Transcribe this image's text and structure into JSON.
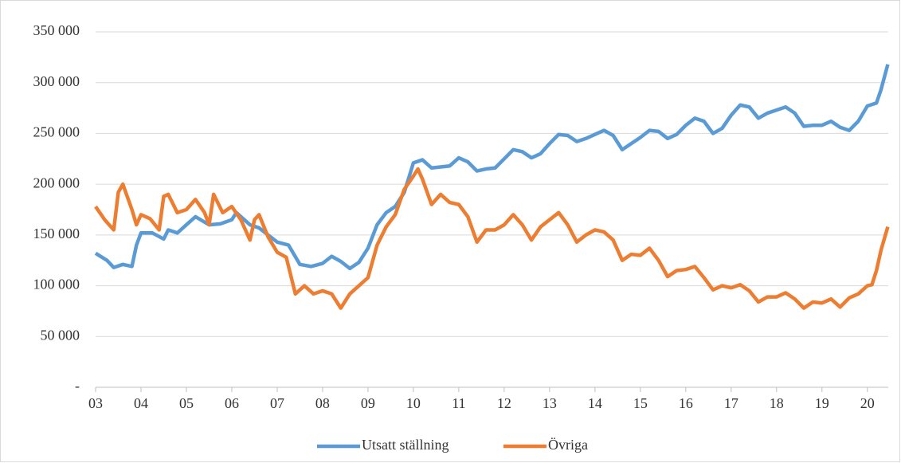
{
  "chart_data": {
    "type": "line",
    "xlim": [
      3,
      20.46
    ],
    "xticks": [
      {
        "value": 3,
        "label": "03"
      },
      {
        "value": 4,
        "label": "04"
      },
      {
        "value": 5,
        "label": "05"
      },
      {
        "value": 6,
        "label": "06"
      },
      {
        "value": 7,
        "label": "07"
      },
      {
        "value": 8,
        "label": "08"
      },
      {
        "value": 9,
        "label": "09"
      },
      {
        "value": 10,
        "label": "10"
      },
      {
        "value": 11,
        "label": "11"
      },
      {
        "value": 12,
        "label": "12"
      },
      {
        "value": 13,
        "label": "13"
      },
      {
        "value": 14,
        "label": "14"
      },
      {
        "value": 15,
        "label": "15"
      },
      {
        "value": 16,
        "label": "16"
      },
      {
        "value": 17,
        "label": "17"
      },
      {
        "value": 18,
        "label": "18"
      },
      {
        "value": 19,
        "label": "19"
      },
      {
        "value": 20,
        "label": "20"
      }
    ],
    "ylim": [
      0,
      350000
    ],
    "yticks": [
      {
        "value": 0,
        "label": "-"
      },
      {
        "value": 50000,
        "label": "50 000"
      },
      {
        "value": 100000,
        "label": "100 000"
      },
      {
        "value": 150000,
        "label": "150 000"
      },
      {
        "value": 200000,
        "label": "200 000"
      },
      {
        "value": 250000,
        "label": "250 000"
      },
      {
        "value": 300000,
        "label": "300 000"
      },
      {
        "value": 350000,
        "label": "350 000"
      }
    ],
    "grid": true,
    "legend": "bottom",
    "series": [
      {
        "name": "Utsatt ställning",
        "color": "#5b9bd5",
        "x": [
          3.0,
          3.25,
          3.4,
          3.6,
          3.8,
          3.9,
          4.0,
          4.25,
          4.5,
          4.6,
          4.8,
          5.0,
          5.2,
          5.5,
          5.75,
          6.0,
          6.1,
          6.4,
          6.6,
          6.8,
          7.0,
          7.25,
          7.5,
          7.75,
          8.0,
          8.2,
          8.4,
          8.6,
          8.8,
          9.0,
          9.2,
          9.4,
          9.6,
          9.8,
          10.0,
          10.2,
          10.4,
          10.6,
          10.8,
          11.0,
          11.2,
          11.4,
          11.6,
          11.8,
          12.0,
          12.2,
          12.4,
          12.6,
          12.8,
          13.0,
          13.2,
          13.4,
          13.6,
          13.8,
          14.0,
          14.2,
          14.4,
          14.6,
          14.8,
          15.0,
          15.2,
          15.4,
          15.6,
          15.8,
          16.0,
          16.2,
          16.4,
          16.6,
          16.8,
          17.0,
          17.2,
          17.4,
          17.6,
          17.8,
          18.0,
          18.2,
          18.4,
          18.6,
          18.8,
          19.0,
          19.2,
          19.4,
          19.6,
          19.8,
          20.0,
          20.2,
          20.3,
          20.45
        ],
        "values": [
          132000,
          125000,
          118000,
          121000,
          119000,
          140000,
          152000,
          152000,
          146000,
          155000,
          152000,
          160000,
          168000,
          160000,
          161000,
          165000,
          172000,
          160000,
          157000,
          150000,
          143000,
          140000,
          121000,
          119000,
          122000,
          129000,
          124000,
          117000,
          123000,
          137000,
          160000,
          172000,
          178000,
          192000,
          221000,
          224000,
          216000,
          217000,
          218000,
          226000,
          222000,
          213000,
          215000,
          216000,
          225000,
          234000,
          232000,
          226000,
          230000,
          240000,
          249000,
          248000,
          242000,
          245000,
          249000,
          253000,
          248000,
          234000,
          240000,
          246000,
          253000,
          252000,
          245000,
          249000,
          258000,
          265000,
          262000,
          250000,
          255000,
          268000,
          278000,
          276000,
          265000,
          270000,
          273000,
          276000,
          270000,
          257000,
          258000,
          258000,
          262000,
          256000,
          253000,
          262000,
          277000,
          280000,
          293000,
          318000
        ]
      },
      {
        "name": "Övriga",
        "color": "#ed7d31",
        "x": [
          3.0,
          3.2,
          3.4,
          3.5,
          3.6,
          3.8,
          3.9,
          4.0,
          4.2,
          4.4,
          4.5,
          4.6,
          4.8,
          5.0,
          5.2,
          5.4,
          5.5,
          5.6,
          5.8,
          6.0,
          6.2,
          6.4,
          6.5,
          6.6,
          6.8,
          7.0,
          7.2,
          7.4,
          7.6,
          7.8,
          8.0,
          8.2,
          8.4,
          8.6,
          8.8,
          9.0,
          9.2,
          9.4,
          9.6,
          9.8,
          10.0,
          10.1,
          10.2,
          10.4,
          10.6,
          10.8,
          11.0,
          11.2,
          11.4,
          11.6,
          11.8,
          12.0,
          12.2,
          12.4,
          12.6,
          12.8,
          13.0,
          13.2,
          13.4,
          13.6,
          13.8,
          14.0,
          14.2,
          14.4,
          14.6,
          14.8,
          15.0,
          15.2,
          15.4,
          15.6,
          15.8,
          16.0,
          16.2,
          16.4,
          16.6,
          16.8,
          17.0,
          17.2,
          17.4,
          17.6,
          17.8,
          18.0,
          18.2,
          18.4,
          18.6,
          18.8,
          19.0,
          19.2,
          19.4,
          19.6,
          19.8,
          20.0,
          20.1,
          20.2,
          20.3,
          20.45
        ],
        "values": [
          178000,
          165000,
          155000,
          192000,
          200000,
          175000,
          160000,
          170000,
          166000,
          155000,
          188000,
          190000,
          172000,
          175000,
          185000,
          172000,
          160000,
          190000,
          172000,
          178000,
          165000,
          145000,
          165000,
          170000,
          148000,
          133000,
          128000,
          92000,
          100000,
          92000,
          95000,
          92000,
          78000,
          92000,
          100000,
          108000,
          140000,
          158000,
          170000,
          195000,
          208000,
          215000,
          205000,
          180000,
          190000,
          182000,
          180000,
          168000,
          143000,
          155000,
          155000,
          160000,
          170000,
          160000,
          145000,
          158000,
          165000,
          172000,
          160000,
          143000,
          150000,
          155000,
          153000,
          145000,
          125000,
          131000,
          130000,
          137000,
          125000,
          109000,
          115000,
          116000,
          119000,
          108000,
          96000,
          100000,
          98000,
          101000,
          95000,
          84000,
          89000,
          89000,
          93000,
          87000,
          78000,
          84000,
          83000,
          87000,
          79000,
          88000,
          92000,
          100000,
          101000,
          115000,
          135000,
          158000
        ]
      }
    ]
  }
}
